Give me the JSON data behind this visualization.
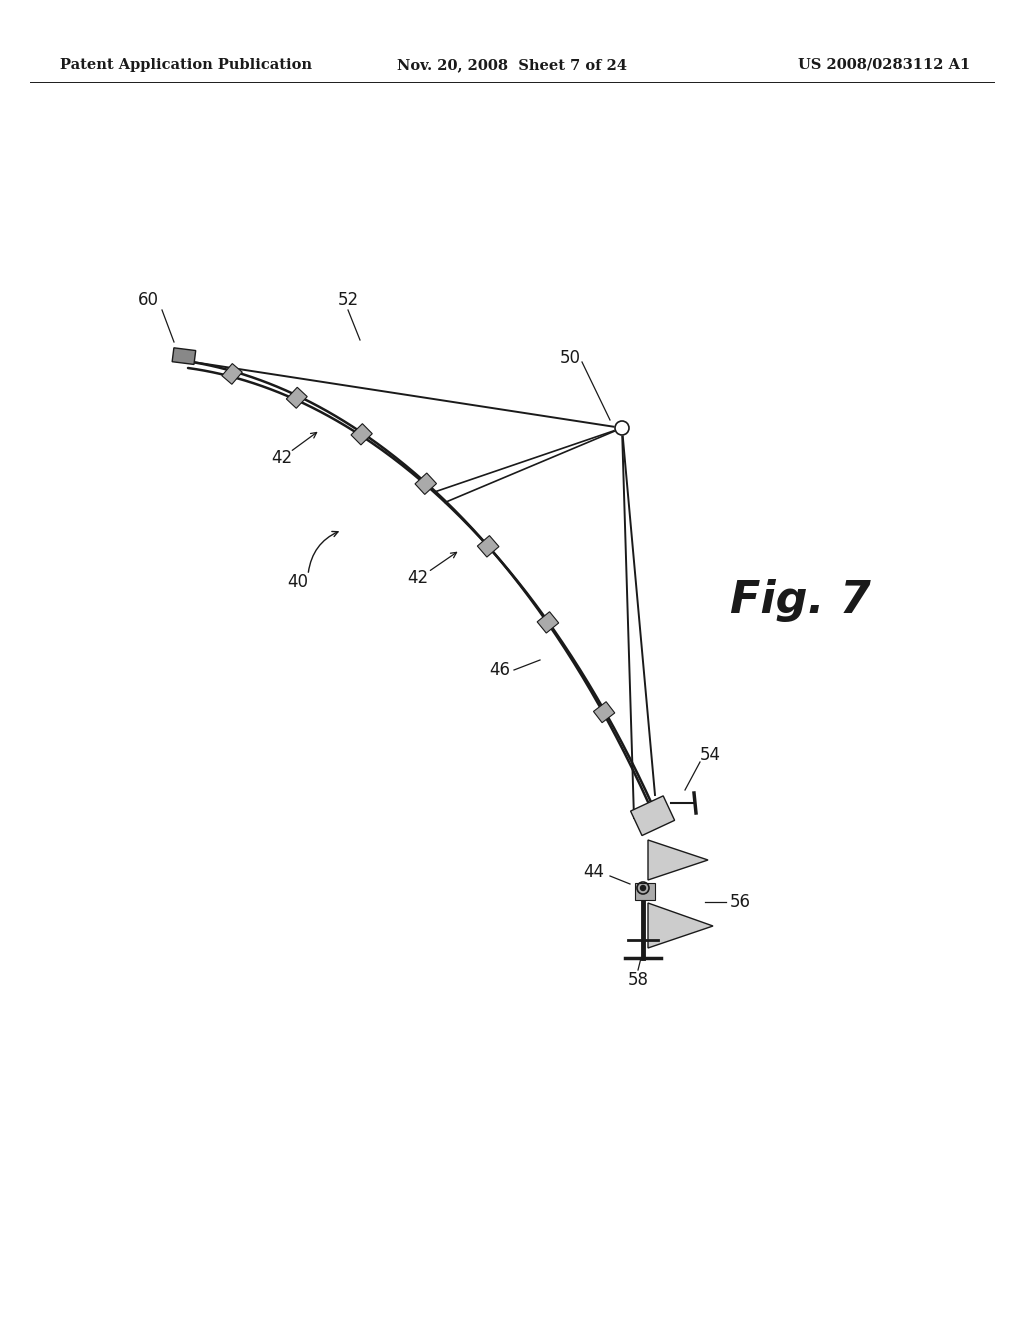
{
  "bg_color": "#ffffff",
  "line_color": "#1a1a1a",
  "header_left": "Patent Application Publication",
  "header_center": "Nov. 20, 2008  Sheet 7 of 24",
  "header_right": "US 2008/0283112 A1",
  "fig_label": "Fig. 7",
  "title_fontsize": 10.5,
  "fig_label_fontsize": 32,
  "ref_fontsize": 12
}
